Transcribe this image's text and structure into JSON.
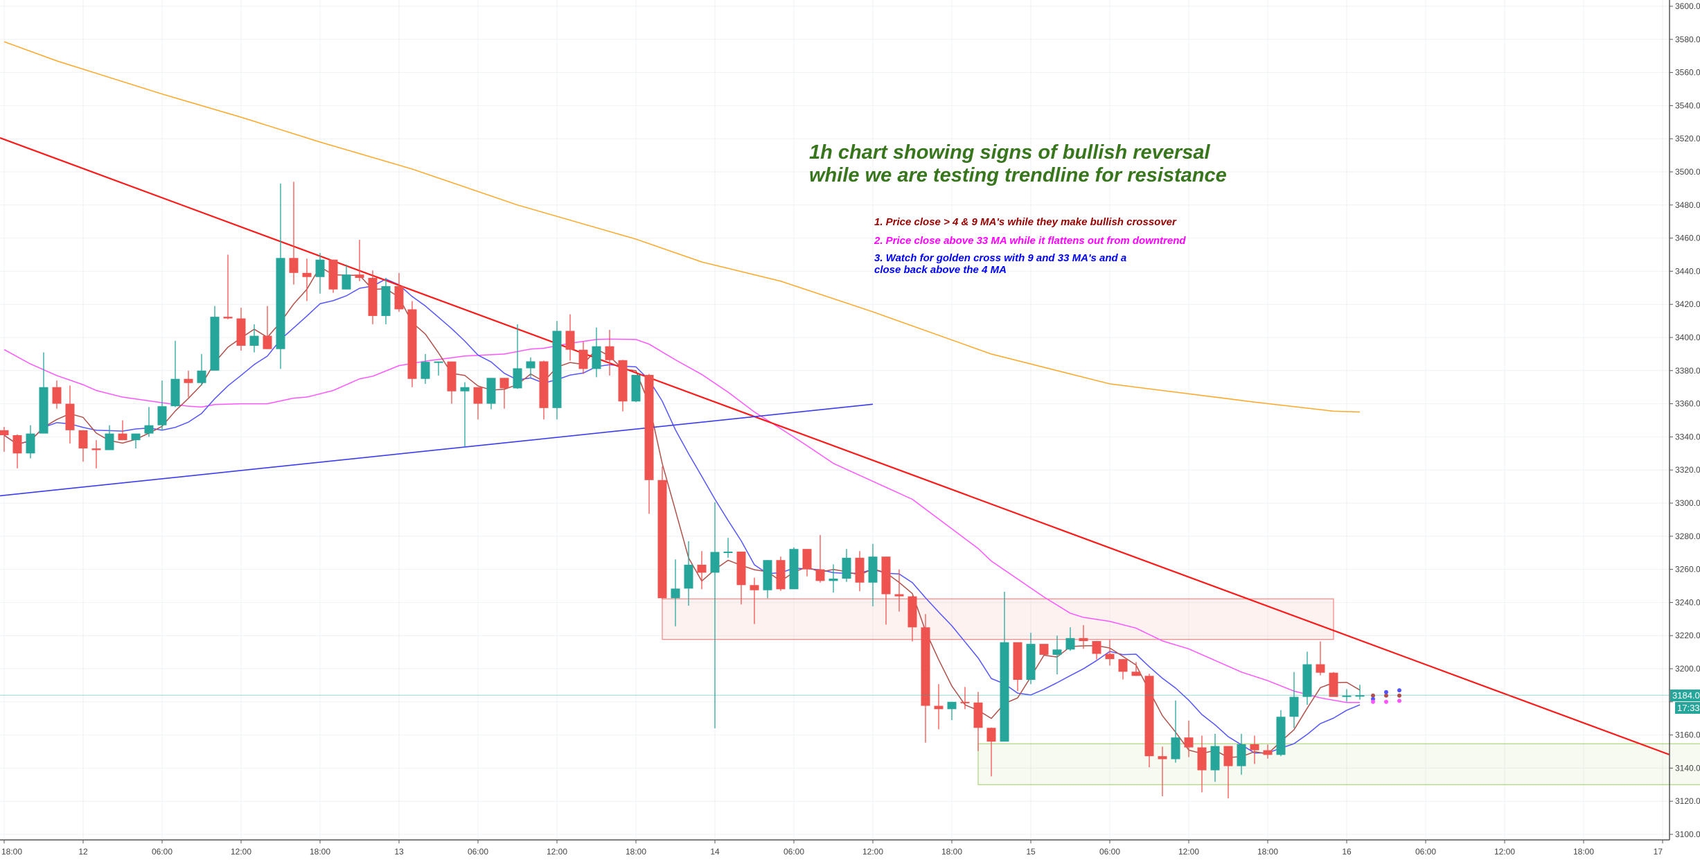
{
  "chart_data": {
    "type": "candlestick",
    "interval": "1h",
    "start": "11 18:00",
    "ylim": [
      3100,
      3600
    ],
    "yticks_step": 20,
    "grid": true,
    "colors": {
      "up": "#26a69a",
      "down": "#ef5350",
      "ma4": "#b0504a",
      "ma9": "#5555ff",
      "ma33": "#ff55ff",
      "ma200": "#ffa726",
      "trend_red": "#ff1a1a",
      "trend_blue": "#3b3bef",
      "supply_zone": "#ef5350",
      "demand_zone": "#8bc34a"
    },
    "time_labels": [
      "18:00",
      "12",
      "06:00",
      "12:00",
      "18:00",
      "13",
      "06:00",
      "12:00",
      "18:00",
      "14",
      "06:00",
      "12:00",
      "18:00",
      "15",
      "06:00",
      "12:00",
      "18:00",
      "16",
      "06:00",
      "12:00",
      "18:00",
      "17"
    ],
    "ohlc": [
      [
        3344,
        3346,
        3331,
        3341
      ],
      [
        3341,
        3341.5,
        3321,
        3330
      ],
      [
        3330,
        3347,
        3327,
        3342
      ],
      [
        3342,
        3391,
        3342,
        3370
      ],
      [
        3370,
        3374,
        3357,
        3360
      ],
      [
        3360,
        3371,
        3336,
        3344
      ],
      [
        3344,
        3344,
        3325,
        3333
      ],
      [
        3333,
        3338,
        3321,
        3332
      ],
      [
        3332,
        3347,
        3332,
        3342
      ],
      [
        3342,
        3350,
        3338,
        3338
      ],
      [
        3338,
        3342,
        3333,
        3342
      ],
      [
        3342,
        3358,
        3340,
        3347
      ],
      [
        3347,
        3374,
        3344,
        3358.5
      ],
      [
        3358.5,
        3398,
        3358,
        3375
      ],
      [
        3375,
        3380,
        3364,
        3372.5
      ],
      [
        3372.5,
        3390,
        3371,
        3380
      ],
      [
        3380,
        3419,
        3380,
        3412.5
      ],
      [
        3412.5,
        3450,
        3411,
        3411.5
      ],
      [
        3411.5,
        3418,
        3392,
        3395
      ],
      [
        3395,
        3408,
        3391,
        3401
      ],
      [
        3401,
        3419,
        3393,
        3393
      ],
      [
        3393,
        3493,
        3381,
        3448
      ],
      [
        3448,
        3494,
        3432,
        3439
      ],
      [
        3439,
        3447.6,
        3422,
        3436.5
      ],
      [
        3436.5,
        3451,
        3426.5,
        3447
      ],
      [
        3447,
        3447,
        3427,
        3429
      ],
      [
        3429,
        3444,
        3429,
        3438
      ],
      [
        3438,
        3459,
        3434,
        3436
      ],
      [
        3436,
        3440.5,
        3408,
        3413
      ],
      [
        3413,
        3436,
        3408,
        3431
      ],
      [
        3431,
        3439,
        3415.5,
        3417
      ],
      [
        3417,
        3422,
        3370,
        3375
      ],
      [
        3375,
        3390,
        3372,
        3385.3
      ],
      [
        3385.3,
        3385.5,
        3377,
        3385.5
      ],
      [
        3385.5,
        3385.5,
        3360,
        3367.5
      ],
      [
        3367.5,
        3373,
        3334,
        3370
      ],
      [
        3370,
        3370,
        3350.5,
        3360
      ],
      [
        3360,
        3375.6,
        3356.7,
        3375.6
      ],
      [
        3375.6,
        3375.6,
        3357,
        3369.3
      ],
      [
        3369.3,
        3408,
        3369,
        3381.4
      ],
      [
        3381.4,
        3388,
        3376,
        3385.6
      ],
      [
        3385.6,
        3386,
        3350.5,
        3357.4
      ],
      [
        3357.4,
        3410,
        3350.5,
        3404
      ],
      [
        3404,
        3414,
        3386,
        3392.6
      ],
      [
        3392.6,
        3397.5,
        3378,
        3381
      ],
      [
        3381,
        3406,
        3376,
        3394.7
      ],
      [
        3394.7,
        3404.6,
        3377,
        3386.3
      ],
      [
        3386.3,
        3386.5,
        3355.4,
        3361.4
      ],
      [
        3361.4,
        3377.4,
        3361,
        3377.4
      ],
      [
        3377.4,
        3378,
        3293.5,
        3313.9
      ],
      [
        3313.9,
        3322,
        3242,
        3242.6
      ],
      [
        3242.6,
        3266,
        3225.6,
        3248.4
      ],
      [
        3248.4,
        3277,
        3238,
        3262.8
      ],
      [
        3262.8,
        3271,
        3248,
        3258
      ],
      [
        3258,
        3300.5,
        3164,
        3270.5
      ],
      [
        3270.5,
        3279,
        3267,
        3270.7
      ],
      [
        3270.7,
        3270.7,
        3238.8,
        3250.5
      ],
      [
        3250.5,
        3255,
        3227,
        3247.4
      ],
      [
        3247.4,
        3265.6,
        3242.6,
        3265.6
      ],
      [
        3265.6,
        3267.7,
        3247,
        3248
      ],
      [
        3248,
        3273.3,
        3248,
        3272.3
      ],
      [
        3272.3,
        3272.3,
        3255.8,
        3260
      ],
      [
        3260,
        3280.7,
        3252,
        3253
      ],
      [
        3253,
        3263,
        3246,
        3254.4
      ],
      [
        3254.4,
        3272.3,
        3252.4,
        3267
      ],
      [
        3267,
        3271,
        3246.8,
        3252
      ],
      [
        3252,
        3275.4,
        3237.7,
        3267.7
      ],
      [
        3267.7,
        3267.7,
        3226.6,
        3245
      ],
      [
        3245,
        3260,
        3234.5,
        3243.7
      ],
      [
        3243.7,
        3244,
        3216.5,
        3225
      ],
      [
        3225,
        3233,
        3155.4,
        3177.6
      ],
      [
        3177.6,
        3190.7,
        3163.4,
        3175.6
      ],
      [
        3175.6,
        3180,
        3169,
        3180
      ],
      [
        3180,
        3189,
        3175.6,
        3179.6
      ],
      [
        3179.6,
        3186,
        3150.3,
        3164.3
      ],
      [
        3164.3,
        3164.5,
        3135,
        3156
      ],
      [
        3156,
        3246.5,
        3156,
        3216
      ],
      [
        3216,
        3216,
        3186.5,
        3193.3
      ],
      [
        3193.3,
        3221.7,
        3190.7,
        3215
      ],
      [
        3215,
        3215,
        3208.4,
        3208.4
      ],
      [
        3208.4,
        3220,
        3196.6,
        3211.6
      ],
      [
        3211.6,
        3225,
        3210.8,
        3218.5
      ],
      [
        3218.5,
        3226.3,
        3212,
        3216.7
      ],
      [
        3216.7,
        3216.8,
        3205.6,
        3209
      ],
      [
        3209,
        3217.5,
        3201.9,
        3205.8
      ],
      [
        3205.8,
        3205.9,
        3193.5,
        3198.2
      ],
      [
        3198.2,
        3204,
        3195.6,
        3195.7
      ],
      [
        3195.7,
        3197,
        3140.5,
        3147.2
      ],
      [
        3147.2,
        3153,
        3123,
        3145.4
      ],
      [
        3145.4,
        3180.8,
        3143.3,
        3158.5
      ],
      [
        3158.5,
        3168.7,
        3146.6,
        3152.5
      ],
      [
        3152.5,
        3159.6,
        3125.4,
        3138.7
      ],
      [
        3138.7,
        3160.7,
        3131.7,
        3153.3
      ],
      [
        3153.3,
        3153.3,
        3121.7,
        3141.2
      ],
      [
        3141.2,
        3160.7,
        3136,
        3154.4
      ],
      [
        3154.4,
        3159.6,
        3142.5,
        3150.8
      ],
      [
        3150.8,
        3154.2,
        3145.7,
        3148
      ],
      [
        3148,
        3175,
        3147.2,
        3171
      ],
      [
        3171,
        3198,
        3164.2,
        3183
      ],
      [
        3183,
        3210.3,
        3178.2,
        3202.7
      ],
      [
        3202.7,
        3216.5,
        3196,
        3197.6
      ],
      [
        3197.6,
        3198,
        3183,
        3183
      ],
      [
        3183,
        3187.7,
        3180,
        3183.8
      ],
      [
        3183.8,
        3190.3,
        3181.3,
        3184
      ]
    ],
    "ma33": [
      [
        "11 18:00",
        3392.7
      ],
      [
        "11 20:00",
        3384
      ],
      [
        "11 22:00",
        3377
      ],
      [
        "12 00:00",
        3371.5
      ],
      [
        "12 01:00",
        3368
      ],
      [
        "12 03:00",
        3364
      ],
      [
        "12 06:00",
        3360.6
      ],
      [
        "12 08:00",
        3358.5
      ],
      [
        "12 09:00",
        3358
      ],
      [
        "12 10:00",
        3359.5
      ],
      [
        "12 12:00",
        3360
      ],
      [
        "12 14:00",
        3360
      ],
      [
        "12 16:00",
        3363.4
      ],
      [
        "12 17:00",
        3364
      ],
      [
        "12 19:00",
        3368
      ],
      [
        "12 21:00",
        3375
      ],
      [
        "12 22:00",
        3376.6
      ],
      [
        "13 00:00",
        3383
      ],
      [
        "13 02:00",
        3385.7
      ],
      [
        "13 05:00",
        3388.8
      ],
      [
        "13 08:00",
        3390
      ],
      [
        "13 10:00",
        3393
      ],
      [
        "13 11:00",
        3393.5
      ],
      [
        "13 13:00",
        3396.5
      ],
      [
        "13 15:00",
        3398.8
      ],
      [
        "13 16:00",
        3399
      ],
      [
        "13 18:00",
        3398.8
      ],
      [
        "13 19:00",
        3396
      ],
      [
        "13 21:00",
        3386.5
      ],
      [
        "13 23:00",
        3377.7
      ],
      [
        "14 01:00",
        3367
      ],
      [
        "14 03:00",
        3355
      ],
      [
        "14 05:00",
        3345
      ],
      [
        "14 07:00",
        3334.7
      ],
      [
        "14 09:00",
        3324
      ],
      [
        "14 15:00",
        3302.3
      ],
      [
        "14 20:00",
        3272.6
      ],
      [
        "14 21:00",
        3265
      ],
      [
        "15 01:00",
        3243.3
      ],
      [
        "15 03:00",
        3233.5
      ],
      [
        "15 04:00",
        3231
      ],
      [
        "15 06:00",
        3228.6
      ],
      [
        "15 08:00",
        3224.5
      ],
      [
        "15 10:00",
        3216.8
      ],
      [
        "15 12:00",
        3212
      ],
      [
        "15 14:00",
        3205
      ],
      [
        "15 16:00",
        3198
      ],
      [
        "15 18:00",
        3192.8
      ],
      [
        "15 20:00",
        3186.5
      ],
      [
        "15 22:00",
        3182.4
      ],
      [
        "16 00:00",
        3179.6
      ],
      [
        "16 01:00",
        3179.6
      ]
    ],
    "ma200": [
      [
        "11 18:00",
        3578.6
      ],
      [
        "11 22:00",
        3567
      ],
      [
        "12 06:00",
        3547
      ],
      [
        "12 12:00",
        3533
      ],
      [
        "12 18:00",
        3518
      ],
      [
        "13 01:00",
        3501.7
      ],
      [
        "13 09:00",
        3480
      ],
      [
        "13 18:00",
        3459.4
      ],
      [
        "13 23:00",
        3445.6
      ],
      [
        "14 05:00",
        3434
      ],
      [
        "14 12:00",
        3415.5
      ],
      [
        "14 21:00",
        3390
      ],
      [
        "15 06:00",
        3372
      ],
      [
        "15 12:00",
        3366
      ],
      [
        "15 17:00",
        3361
      ],
      [
        "15 23:00",
        3355.5
      ],
      [
        "16 01:00",
        3355
      ]
    ],
    "projections": {
      "ma4": [
        [
          "16 02:00",
          3183.8
        ],
        [
          "16 03:00",
          3183.8
        ],
        [
          "16 04:00",
          3183.8
        ]
      ],
      "ma9": [
        [
          "16 02:00",
          3181.7
        ],
        [
          "16 03:00",
          3185.9
        ],
        [
          "16 04:00",
          3187
        ]
      ],
      "ma33": [
        [
          "16 02:00",
          3180
        ],
        [
          "16 03:00",
          3180
        ],
        [
          "16 04:00",
          3180.6
        ]
      ]
    },
    "trendlines": [
      {
        "id": "resistance",
        "color": "trend_red",
        "from": [
          "11 18:00",
          3519.6
        ],
        "to": [
          "16 01:00",
          3217.2
        ],
        "extend": "both"
      },
      {
        "id": "support",
        "color": "trend_blue",
        "from": [
          "11 18:00",
          3304.7
        ],
        "to": [
          "14 12:00",
          3359.7
        ],
        "extend": "left"
      }
    ],
    "zones": [
      {
        "id": "supply",
        "color": "supply_zone",
        "from": "13 20:00",
        "to": "15 23:00",
        "top": 3242.2,
        "bottom": 3217.7
      },
      {
        "id": "demand",
        "color": "demand_zone",
        "from": "14 20:00",
        "to": "17 21:00",
        "top": 3154.7,
        "bottom": 3130
      }
    ],
    "last_price": 3184.0
  },
  "annotations": {
    "title_line1": "1h chart showing signs of bullish reversal",
    "title_line2": "while we are testing trendline for resistance",
    "note1": "1. Price close > 4 & 9 MA's while they make bullish crossover",
    "note2": "2. Price close above 33 MA while it flattens out from downtrend",
    "note3_line1": "3. Watch for golden cross with 9 and 33 MA's and a",
    "note3_line2": "close back above the 4 MA",
    "note1_color": "#990000",
    "note2_color": "#ff00ff",
    "note3_color": "#0000ff"
  },
  "price_axis": {
    "last_price_label": "3184.0",
    "countdown": "17:33"
  }
}
